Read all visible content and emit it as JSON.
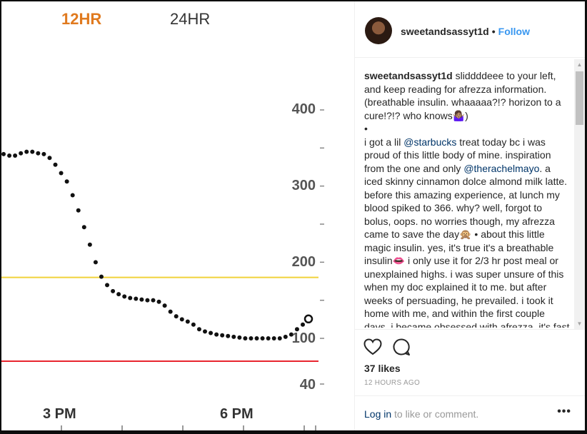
{
  "chart": {
    "tabs": [
      "12HR",
      "24HR"
    ],
    "y_ticks": [
      "400",
      "300",
      "200",
      "100",
      "40"
    ],
    "x_ticks": [
      "3 PM",
      "6 PM"
    ]
  },
  "chart_data": {
    "type": "scatter",
    "y_axis_labels": [
      400,
      300,
      200,
      100,
      40
    ],
    "x_labels": [
      "3 PM",
      "6 PM"
    ],
    "ranges": {
      "high_line": 180,
      "low_line": 70
    },
    "series": [
      {
        "values": [
          342,
          340,
          340,
          343,
          345,
          345,
          343,
          342,
          337,
          328,
          317,
          306,
          288,
          268,
          246,
          223,
          200,
          181,
          170,
          162,
          158,
          155,
          153,
          152,
          151,
          150,
          150,
          148,
          143,
          135,
          129,
          125,
          122,
          118,
          112,
          109,
          107,
          105,
          104,
          103,
          102,
          101,
          100,
          100,
          100,
          100,
          100,
          100,
          100,
          102,
          105,
          112,
          118
        ]
      }
    ],
    "colors": {
      "high_line": "#f1d23a",
      "low_line": "#e8262f",
      "points": "#111111"
    }
  },
  "post": {
    "username": "sweetandsassyt1d",
    "follow_label": "Follow",
    "separator": "•",
    "caption_user": "sweetandsassyt1d",
    "caption_p1": " sliddddeee to your left, and keep reading for afrezza information. (breathable insulin. whaaaaa?!? horizon to a cure!?!? who knows🤷🏽‍♀️)",
    "caption_bullet": "•",
    "caption_p2a": "i got a lil ",
    "mention1": "@starbucks",
    "caption_p2b": " treat today bc i was proud of this little body of mine. inspiration from the one and only ",
    "mention2": "@therachelmayo",
    "caption_p2c": ". a iced skinny cinnamon dolce almond milk latte. before this amazing experience, at lunch my blood spiked to 366. why? well, forgot to bolus, oops. no worries though, my afrezza came to save the day🙊 • about this little magic insulin. yes, it's true it's a breathable insulin👄 i only use it for 2/3 hr post meal or unexplained highs. i was super unsure of this when my doc explained it to me. but after weeks of persuading, he prevailed. i took it home with me, and within the first couple days, i became obsessed with afrezza. it's fast",
    "likes": "37 likes",
    "timestamp": "12 HOURS AGO",
    "login_link": "Log in",
    "login_rest": " to like or comment.",
    "more_label": "•••",
    "icons": [
      "heart-icon",
      "comment-icon",
      "more-options-icon"
    ]
  }
}
